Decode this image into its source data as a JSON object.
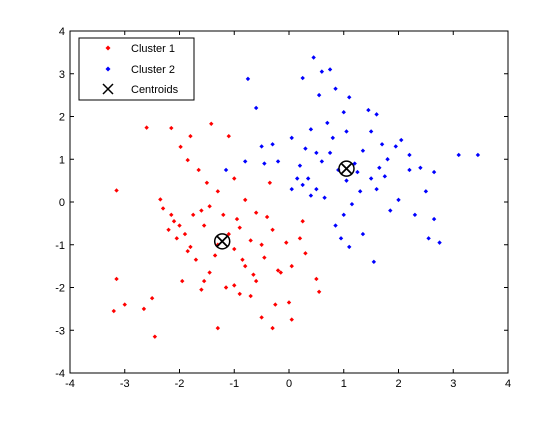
{
  "chart_data": {
    "type": "scatter",
    "title": "",
    "xlabel": "",
    "ylabel": "",
    "xlim": [
      -4,
      4
    ],
    "ylim": [
      -4,
      4
    ],
    "xticks": [
      -4,
      -3,
      -2,
      -1,
      0,
      1,
      2,
      3,
      4
    ],
    "yticks": [
      -4,
      -3,
      -2,
      -1,
      0,
      1,
      2,
      3,
      4
    ],
    "grid": false,
    "legend_position": "top-left",
    "series": [
      {
        "name": "Cluster 1",
        "color": "#ff0000",
        "marker": "point",
        "points": [
          [
            -3.15,
            0.27
          ],
          [
            -2.6,
            1.74
          ],
          [
            -2.15,
            1.73
          ],
          [
            -1.98,
            1.29
          ],
          [
            -1.8,
            1.54
          ],
          [
            -1.42,
            1.83
          ],
          [
            -1.1,
            1.54
          ],
          [
            -1.85,
            0.98
          ],
          [
            -1.65,
            0.75
          ],
          [
            -1.5,
            0.45
          ],
          [
            -1.3,
            0.25
          ],
          [
            -1.0,
            0.55
          ],
          [
            -0.8,
            0.05
          ],
          [
            -0.6,
            -0.25
          ],
          [
            -0.35,
            0.45
          ],
          [
            -2.35,
            0.06
          ],
          [
            -2.3,
            -0.15
          ],
          [
            -2.15,
            -0.3
          ],
          [
            -2.0,
            -0.55
          ],
          [
            -1.9,
            -0.75
          ],
          [
            -1.8,
            -1.05
          ],
          [
            -1.7,
            -1.35
          ],
          [
            -1.6,
            -0.2
          ],
          [
            -1.45,
            -0.1
          ],
          [
            -1.2,
            -0.3
          ],
          [
            -1.55,
            -1.85
          ],
          [
            -1.45,
            -1.65
          ],
          [
            -1.35,
            -1.25
          ],
          [
            -1.3,
            -1.0
          ],
          [
            -1.1,
            -0.75
          ],
          [
            -1.0,
            -1.1
          ],
          [
            -0.9,
            -0.6
          ],
          [
            -0.8,
            -1.5
          ],
          [
            -0.7,
            -2.2
          ],
          [
            -0.6,
            -1.85
          ],
          [
            -0.5,
            -1.0
          ],
          [
            -0.4,
            -0.35
          ],
          [
            -0.3,
            -0.65
          ],
          [
            -0.2,
            -1.6
          ],
          [
            -0.15,
            -1.65
          ],
          [
            -0.05,
            -0.95
          ],
          [
            0.05,
            -1.5
          ],
          [
            0.2,
            -0.85
          ],
          [
            0.3,
            -1.2
          ],
          [
            0.25,
            -0.45
          ],
          [
            0.5,
            -1.8
          ],
          [
            0.55,
            -2.1
          ],
          [
            -0.25,
            -2.4
          ],
          [
            -0.5,
            -2.7
          ],
          [
            -0.3,
            -2.95
          ],
          [
            -1.3,
            -2.95
          ],
          [
            -1.6,
            -2.05
          ],
          [
            -1.85,
            -1.15
          ],
          [
            -2.05,
            -0.85
          ],
          [
            -2.2,
            -0.65
          ],
          [
            -2.5,
            -2.25
          ],
          [
            -2.65,
            -2.5
          ],
          [
            -2.45,
            -3.15
          ],
          [
            -3.0,
            -2.4
          ],
          [
            -3.2,
            -2.55
          ],
          [
            -3.15,
            -1.8
          ],
          [
            -0.9,
            -2.15
          ],
          [
            -1.0,
            -1.95
          ],
          [
            -1.15,
            -2.0
          ],
          [
            -0.85,
            -1.35
          ],
          [
            -0.65,
            -1.7
          ],
          [
            -0.45,
            -1.3
          ],
          [
            0.0,
            -2.35
          ],
          [
            0.05,
            -2.75
          ],
          [
            -0.7,
            -0.9
          ],
          [
            -0.95,
            -0.4
          ],
          [
            -1.55,
            -0.55
          ],
          [
            -1.75,
            -0.3
          ],
          [
            -2.1,
            -0.45
          ],
          [
            -1.95,
            -1.85
          ]
        ]
      },
      {
        "name": "Cluster 2",
        "color": "#0000ff",
        "marker": "point",
        "points": [
          [
            -0.75,
            2.88
          ],
          [
            -0.6,
            2.2
          ],
          [
            -0.5,
            1.3
          ],
          [
            -0.45,
            0.9
          ],
          [
            -0.8,
            0.95
          ],
          [
            -1.15,
            0.75
          ],
          [
            -0.3,
            1.35
          ],
          [
            -0.2,
            0.95
          ],
          [
            0.05,
            1.5
          ],
          [
            0.25,
            2.9
          ],
          [
            0.45,
            3.38
          ],
          [
            0.6,
            3.05
          ],
          [
            0.75,
            3.1
          ],
          [
            0.55,
            2.5
          ],
          [
            0.85,
            2.65
          ],
          [
            1.0,
            2.1
          ],
          [
            1.1,
            2.45
          ],
          [
            0.7,
            1.85
          ],
          [
            0.4,
            1.7
          ],
          [
            0.3,
            1.25
          ],
          [
            0.2,
            0.85
          ],
          [
            0.35,
            0.55
          ],
          [
            0.5,
            0.3
          ],
          [
            0.6,
            0.95
          ],
          [
            0.75,
            1.15
          ],
          [
            0.9,
            0.75
          ],
          [
            1.05,
            0.5
          ],
          [
            1.2,
            0.9
          ],
          [
            1.35,
            1.2
          ],
          [
            1.5,
            1.65
          ],
          [
            1.6,
            2.05
          ],
          [
            1.7,
            1.35
          ],
          [
            1.8,
            1.0
          ],
          [
            1.95,
            1.3
          ],
          [
            2.05,
            1.45
          ],
          [
            2.2,
            1.1
          ],
          [
            2.4,
            0.8
          ],
          [
            2.5,
            0.25
          ],
          [
            2.65,
            -0.4
          ],
          [
            2.75,
            -0.95
          ],
          [
            2.55,
            -0.85
          ],
          [
            2.3,
            -0.3
          ],
          [
            2.0,
            0.05
          ],
          [
            1.85,
            -0.2
          ],
          [
            1.6,
            0.3
          ],
          [
            1.5,
            0.55
          ],
          [
            1.3,
            0.25
          ],
          [
            1.15,
            -0.05
          ],
          [
            1.0,
            -0.3
          ],
          [
            0.85,
            -0.55
          ],
          [
            0.95,
            -0.85
          ],
          [
            1.1,
            -1.05
          ],
          [
            1.35,
            -0.75
          ],
          [
            1.55,
            -1.4
          ],
          [
            1.75,
            0.6
          ],
          [
            0.65,
            0.1
          ],
          [
            0.4,
            0.15
          ],
          [
            0.15,
            0.55
          ],
          [
            0.05,
            0.3
          ],
          [
            3.1,
            1.1
          ],
          [
            3.45,
            1.1
          ],
          [
            2.65,
            0.7
          ],
          [
            2.2,
            0.75
          ],
          [
            1.45,
            2.15
          ],
          [
            1.05,
            1.65
          ],
          [
            0.8,
            1.5
          ],
          [
            0.5,
            1.15
          ],
          [
            0.25,
            0.4
          ],
          [
            1.25,
            0.7
          ],
          [
            1.65,
            0.8
          ]
        ]
      }
    ],
    "centroids": {
      "name": "Centroids",
      "marker": "x-circle",
      "color": "#000000",
      "points": [
        [
          -1.22,
          -0.92
        ],
        [
          1.05,
          0.78
        ]
      ]
    }
  }
}
